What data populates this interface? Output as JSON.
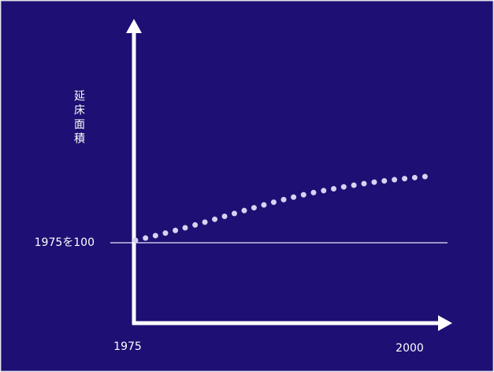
{
  "y_axis_label": "延床面積",
  "baseline_label": "1975を100",
  "x_labels": [
    "1975",
    "2000"
  ]
}
